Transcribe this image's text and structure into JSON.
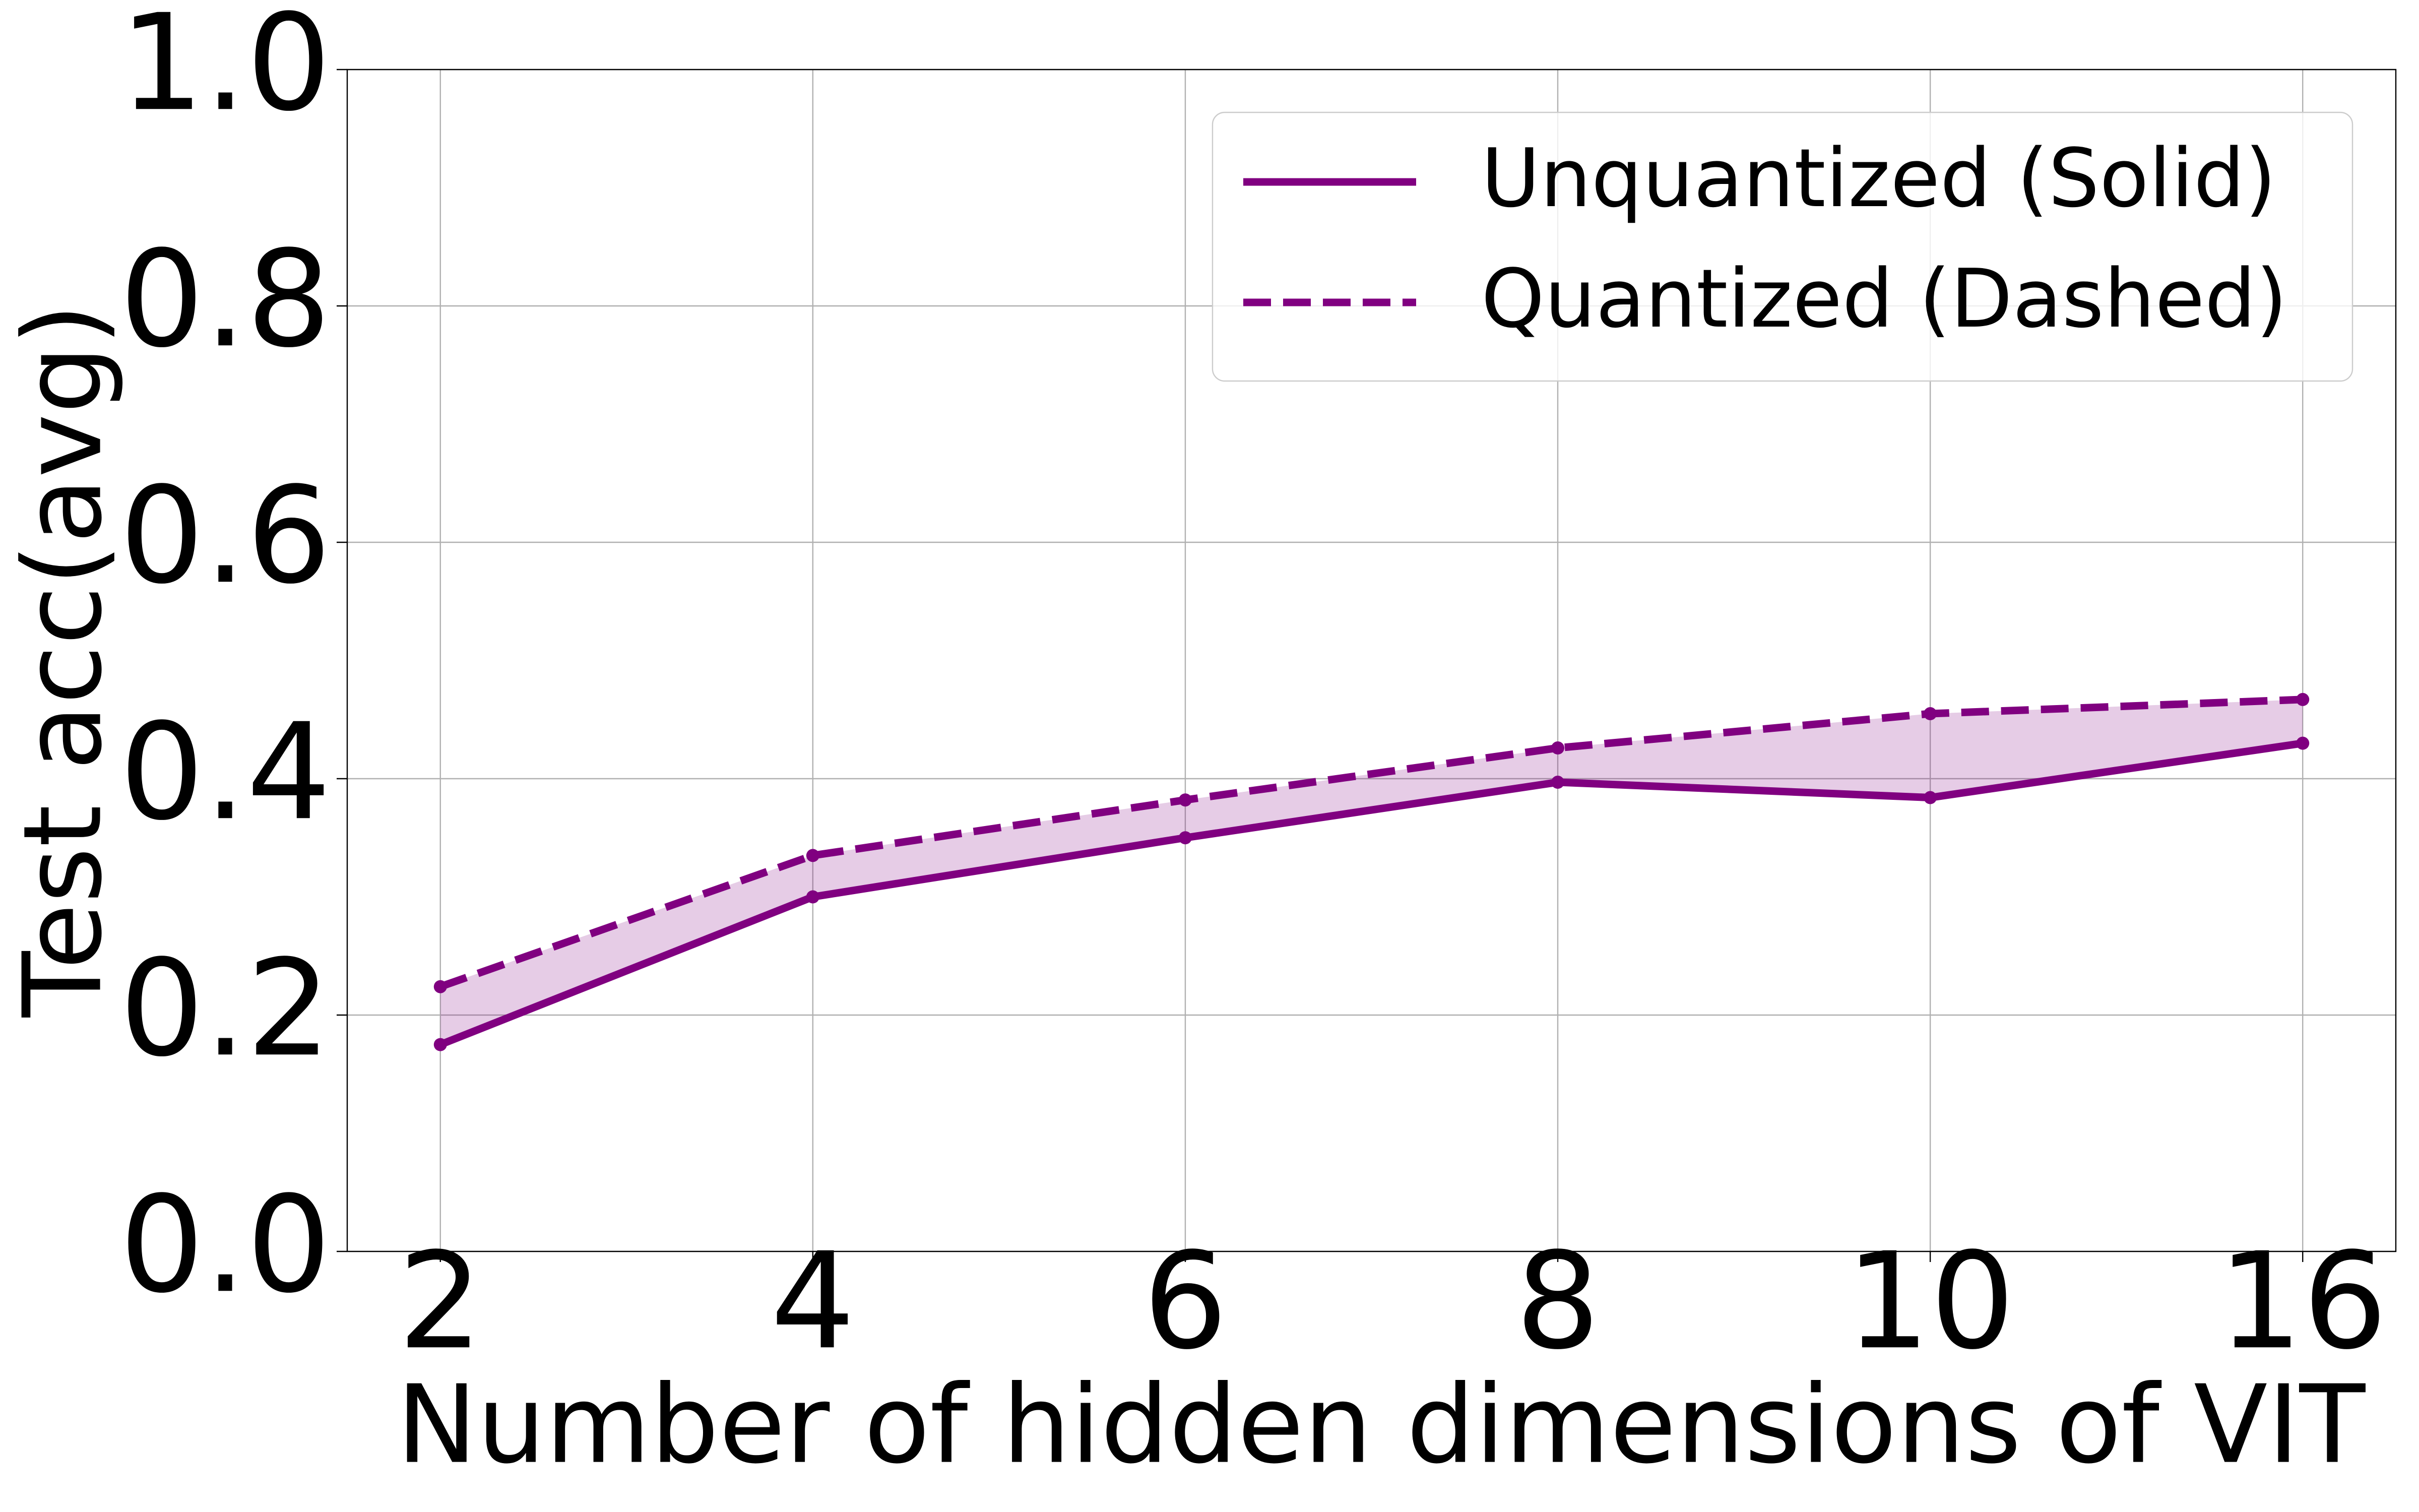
{
  "chart_data": {
    "type": "line",
    "x_label": "Number of hidden dimensions of VIT",
    "y_label": "Test acc(avg)",
    "categories": [
      "2",
      "4",
      "6",
      "8",
      "10",
      "16"
    ],
    "series": [
      {
        "name": "Unquantized (Solid)",
        "color": "#800080",
        "linestyle": "solid",
        "values": [
          0.175,
          0.3,
          0.35,
          0.397,
          0.384,
          0.43
        ]
      },
      {
        "name": "Quantized (Dashed)",
        "color": "#800080",
        "linestyle": "dashed",
        "values": [
          0.224,
          0.335,
          0.382,
          0.426,
          0.455,
          0.467
        ]
      }
    ],
    "fill_between": true,
    "ylim": [
      0,
      1
    ],
    "yticks": [
      {
        "value": 0,
        "label": "0.0"
      },
      0.2,
      0.4,
      0.6,
      0.8,
      {
        "value": 1,
        "label": "1.0"
      }
    ],
    "grid": true,
    "legend": "upper right"
  }
}
